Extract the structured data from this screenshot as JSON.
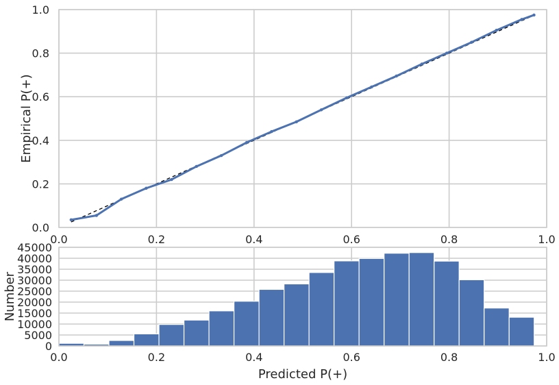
{
  "chart_data": [
    {
      "type": "line",
      "title": "",
      "xlabel": "",
      "ylabel": "Empirical P(+)",
      "xlim": [
        0.0,
        1.0
      ],
      "ylim": [
        0.0,
        1.0
      ],
      "xticks": [
        "0.0",
        "0.2",
        "0.4",
        "0.6",
        "0.8",
        "1.0"
      ],
      "yticks": [
        "0.0",
        "0.2",
        "0.4",
        "0.6",
        "0.8",
        "1.0"
      ],
      "grid": true,
      "series": [
        {
          "role": "calibration-curve",
          "color": "#4c72b0",
          "x": [
            0.025,
            0.077,
            0.128,
            0.179,
            0.231,
            0.282,
            0.333,
            0.385,
            0.436,
            0.487,
            0.538,
            0.59,
            0.641,
            0.692,
            0.744,
            0.795,
            0.846,
            0.897,
            0.949,
            0.974
          ],
          "y": [
            0.035,
            0.055,
            0.13,
            0.18,
            0.22,
            0.28,
            0.33,
            0.39,
            0.44,
            0.485,
            0.54,
            0.595,
            0.645,
            0.695,
            0.75,
            0.8,
            0.85,
            0.905,
            0.955,
            0.975
          ]
        },
        {
          "role": "perfect-calibration",
          "color": "#000000",
          "style": "dashed",
          "x": [
            0.025,
            0.975
          ],
          "y": [
            0.025,
            0.975
          ]
        }
      ]
    },
    {
      "type": "bar",
      "title": "",
      "xlabel": "Predicted P(+)",
      "ylabel": "Number",
      "xlim": [
        0.0,
        1.0
      ],
      "ylim": [
        0,
        45000
      ],
      "xticks": [
        "0.0",
        "0.2",
        "0.4",
        "0.6",
        "0.8",
        "1.0"
      ],
      "yticks": [
        "0",
        "5000",
        "10000",
        "15000",
        "20000",
        "25000",
        "30000",
        "35000",
        "40000",
        "45000"
      ],
      "grid": true,
      "bin_width": 0.05128,
      "bin_starts": [
        0.0,
        0.05128,
        0.10256,
        0.15385,
        0.20513,
        0.25641,
        0.30769,
        0.35897,
        0.41026,
        0.46154,
        0.51282,
        0.5641,
        0.61538,
        0.66667,
        0.71795,
        0.76923,
        0.82051,
        0.87179,
        0.92308
      ],
      "values": [
        1200,
        800,
        2500,
        5500,
        9800,
        11800,
        16000,
        20400,
        25800,
        28300,
        33500,
        38800,
        39900,
        42300,
        42600,
        38700,
        30200,
        17300,
        13100
      ],
      "color": "#4c72b0"
    }
  ]
}
